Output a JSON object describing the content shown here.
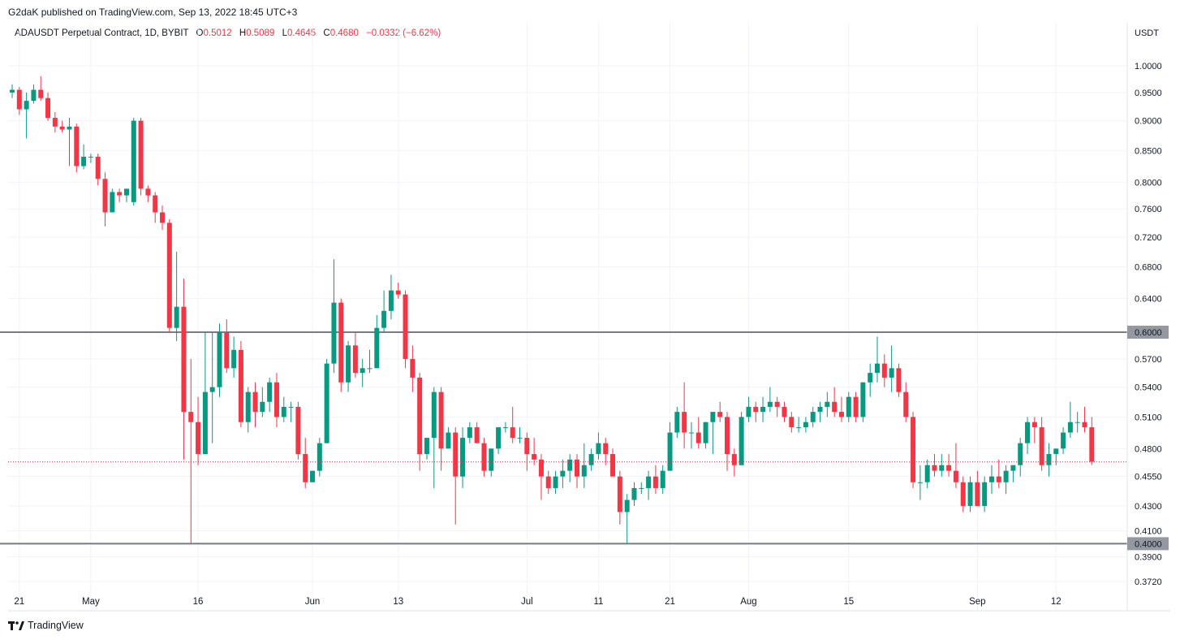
{
  "header": {
    "publisher": "G2daK published on TradingView.com, Sep 13, 2022 18:45 UTC+3"
  },
  "legend": {
    "symbol": "ADAUSDT Perpetual Contract, 1D, BYBIT",
    "open_label": "O",
    "open": "0.5012",
    "high_label": "H",
    "high": "0.5089",
    "low_label": "L",
    "low": "0.4645",
    "close_label": "C",
    "close": "0.4680",
    "change": "−0.0332 (−6.62%)"
  },
  "footer": {
    "brand": "TradingView"
  },
  "colors": {
    "up": "#089981",
    "down": "#f23645",
    "grid": "#f0f3fa",
    "level_line": "#787b86",
    "level_label_bg": "#9598a1",
    "last_price": "#f23645"
  },
  "chart_data": {
    "type": "candlestick",
    "currency": "USDT",
    "log_scale": true,
    "grid": true,
    "y_ticks": [
      "1.0000",
      "0.9500",
      "0.9000",
      "0.8500",
      "0.8000",
      "0.7600",
      "0.7200",
      "0.6800",
      "0.6400",
      "0.5700",
      "0.5400",
      "0.5100",
      "0.4800",
      "0.4550",
      "0.4300",
      "0.4100",
      "0.3900",
      "0.3720"
    ],
    "x_ticks": [
      {
        "label": "21",
        "i": 1
      },
      {
        "label": "May",
        "i": 11
      },
      {
        "label": "16",
        "i": 26
      },
      {
        "label": "Jun",
        "i": 42
      },
      {
        "label": "13",
        "i": 54
      },
      {
        "label": "Jul",
        "i": 72
      },
      {
        "label": "11",
        "i": 82
      },
      {
        "label": "21",
        "i": 92
      },
      {
        "label": "Aug",
        "i": 103
      },
      {
        "label": "15",
        "i": 117
      },
      {
        "label": "Sep",
        "i": 135
      },
      {
        "label": "12",
        "i": 146
      }
    ],
    "horizontal_levels": [
      {
        "value": "0.6000"
      },
      {
        "value": "0.4000"
      }
    ],
    "last_price": 0.468,
    "first_date": "2022-04-20",
    "candles": [
      [
        0.95,
        0.965,
        0.94,
        0.955
      ],
      [
        0.955,
        0.96,
        0.91,
        0.92
      ],
      [
        0.92,
        0.95,
        0.87,
        0.935
      ],
      [
        0.935,
        0.965,
        0.93,
        0.955
      ],
      [
        0.955,
        0.98,
        0.935,
        0.94
      ],
      [
        0.94,
        0.95,
        0.9,
        0.905
      ],
      [
        0.905,
        0.915,
        0.88,
        0.89
      ],
      [
        0.89,
        0.9,
        0.88,
        0.885
      ],
      [
        0.885,
        0.905,
        0.825,
        0.89
      ],
      [
        0.89,
        0.895,
        0.815,
        0.825
      ],
      [
        0.825,
        0.86,
        0.82,
        0.84
      ],
      [
        0.84,
        0.845,
        0.83,
        0.84
      ],
      [
        0.84,
        0.845,
        0.795,
        0.805
      ],
      [
        0.805,
        0.815,
        0.735,
        0.755
      ],
      [
        0.755,
        0.79,
        0.755,
        0.785
      ],
      [
        0.785,
        0.79,
        0.77,
        0.78
      ],
      [
        0.78,
        0.785,
        0.77,
        0.79
      ],
      [
        0.77,
        0.905,
        0.765,
        0.9
      ],
      [
        0.9,
        0.905,
        0.78,
        0.79
      ],
      [
        0.79,
        0.795,
        0.77,
        0.78
      ],
      [
        0.78,
        0.785,
        0.74,
        0.755
      ],
      [
        0.755,
        0.765,
        0.73,
        0.74
      ],
      [
        0.74,
        0.745,
        0.6,
        0.605
      ],
      [
        0.605,
        0.7,
        0.59,
        0.63
      ],
      [
        0.63,
        0.665,
        0.47,
        0.515
      ],
      [
        0.515,
        0.57,
        0.4,
        0.505
      ],
      [
        0.505,
        0.53,
        0.465,
        0.475
      ],
      [
        0.475,
        0.6,
        0.475,
        0.535
      ],
      [
        0.535,
        0.6,
        0.485,
        0.54
      ],
      [
        0.54,
        0.61,
        0.53,
        0.6
      ],
      [
        0.6,
        0.615,
        0.555,
        0.56
      ],
      [
        0.56,
        0.595,
        0.55,
        0.58
      ],
      [
        0.58,
        0.59,
        0.5,
        0.505
      ],
      [
        0.505,
        0.54,
        0.495,
        0.535
      ],
      [
        0.535,
        0.545,
        0.5,
        0.515
      ],
      [
        0.515,
        0.54,
        0.51,
        0.525
      ],
      [
        0.525,
        0.55,
        0.515,
        0.545
      ],
      [
        0.545,
        0.555,
        0.5,
        0.51
      ],
      [
        0.51,
        0.53,
        0.505,
        0.52
      ],
      [
        0.52,
        0.525,
        0.505,
        0.52
      ],
      [
        0.52,
        0.525,
        0.47,
        0.475
      ],
      [
        0.475,
        0.49,
        0.445,
        0.45
      ],
      [
        0.45,
        0.46,
        0.45,
        0.46
      ],
      [
        0.46,
        0.49,
        0.455,
        0.485
      ],
      [
        0.485,
        0.57,
        0.485,
        0.565
      ],
      [
        0.565,
        0.69,
        0.555,
        0.635
      ],
      [
        0.635,
        0.64,
        0.535,
        0.545
      ],
      [
        0.545,
        0.59,
        0.535,
        0.585
      ],
      [
        0.585,
        0.6,
        0.55,
        0.555
      ],
      [
        0.555,
        0.57,
        0.54,
        0.56
      ],
      [
        0.56,
        0.58,
        0.555,
        0.56
      ],
      [
        0.56,
        0.62,
        0.56,
        0.605
      ],
      [
        0.605,
        0.65,
        0.6,
        0.625
      ],
      [
        0.625,
        0.67,
        0.615,
        0.65
      ],
      [
        0.65,
        0.66,
        0.64,
        0.645
      ],
      [
        0.645,
        0.65,
        0.56,
        0.57
      ],
      [
        0.57,
        0.585,
        0.535,
        0.55
      ],
      [
        0.55,
        0.555,
        0.46,
        0.475
      ],
      [
        0.475,
        0.49,
        0.47,
        0.49
      ],
      [
        0.49,
        0.54,
        0.445,
        0.535
      ],
      [
        0.535,
        0.54,
        0.46,
        0.48
      ],
      [
        0.48,
        0.5,
        0.48,
        0.495
      ],
      [
        0.495,
        0.5,
        0.415,
        0.455
      ],
      [
        0.455,
        0.5,
        0.445,
        0.49
      ],
      [
        0.49,
        0.505,
        0.485,
        0.5
      ],
      [
        0.5,
        0.505,
        0.485,
        0.485
      ],
      [
        0.485,
        0.49,
        0.455,
        0.46
      ],
      [
        0.46,
        0.48,
        0.455,
        0.48
      ],
      [
        0.48,
        0.5,
        0.475,
        0.5
      ],
      [
        0.5,
        0.505,
        0.495,
        0.5
      ],
      [
        0.5,
        0.52,
        0.485,
        0.49
      ],
      [
        0.49,
        0.5,
        0.485,
        0.49
      ],
      [
        0.49,
        0.495,
        0.46,
        0.475
      ],
      [
        0.475,
        0.49,
        0.465,
        0.47
      ],
      [
        0.47,
        0.475,
        0.435,
        0.455
      ],
      [
        0.455,
        0.46,
        0.44,
        0.445
      ],
      [
        0.445,
        0.46,
        0.44,
        0.455
      ],
      [
        0.455,
        0.47,
        0.445,
        0.46
      ],
      [
        0.46,
        0.475,
        0.45,
        0.47
      ],
      [
        0.47,
        0.475,
        0.445,
        0.455
      ],
      [
        0.455,
        0.485,
        0.445,
        0.465
      ],
      [
        0.465,
        0.48,
        0.46,
        0.475
      ],
      [
        0.475,
        0.495,
        0.47,
        0.485
      ],
      [
        0.485,
        0.49,
        0.465,
        0.475
      ],
      [
        0.475,
        0.48,
        0.455,
        0.455
      ],
      [
        0.455,
        0.46,
        0.415,
        0.425
      ],
      [
        0.425,
        0.44,
        0.4,
        0.435
      ],
      [
        0.435,
        0.45,
        0.43,
        0.445
      ],
      [
        0.445,
        0.45,
        0.44,
        0.445
      ],
      [
        0.445,
        0.46,
        0.435,
        0.455
      ],
      [
        0.455,
        0.465,
        0.44,
        0.445
      ],
      [
        0.445,
        0.465,
        0.44,
        0.46
      ],
      [
        0.46,
        0.505,
        0.46,
        0.495
      ],
      [
        0.495,
        0.52,
        0.49,
        0.515
      ],
      [
        0.515,
        0.545,
        0.48,
        0.495
      ],
      [
        0.495,
        0.505,
        0.48,
        0.495
      ],
      [
        0.495,
        0.51,
        0.48,
        0.485
      ],
      [
        0.485,
        0.505,
        0.48,
        0.505
      ],
      [
        0.505,
        0.515,
        0.475,
        0.515
      ],
      [
        0.515,
        0.525,
        0.505,
        0.51
      ],
      [
        0.51,
        0.515,
        0.46,
        0.475
      ],
      [
        0.475,
        0.48,
        0.455,
        0.465
      ],
      [
        0.465,
        0.515,
        0.465,
        0.51
      ],
      [
        0.51,
        0.53,
        0.505,
        0.52
      ],
      [
        0.52,
        0.525,
        0.505,
        0.515
      ],
      [
        0.515,
        0.53,
        0.505,
        0.52
      ],
      [
        0.52,
        0.54,
        0.515,
        0.525
      ],
      [
        0.525,
        0.53,
        0.51,
        0.52
      ],
      [
        0.52,
        0.525,
        0.505,
        0.51
      ],
      [
        0.51,
        0.515,
        0.495,
        0.5
      ],
      [
        0.5,
        0.51,
        0.495,
        0.5
      ],
      [
        0.5,
        0.51,
        0.495,
        0.505
      ],
      [
        0.505,
        0.52,
        0.5,
        0.515
      ],
      [
        0.515,
        0.525,
        0.505,
        0.52
      ],
      [
        0.52,
        0.535,
        0.51,
        0.525
      ],
      [
        0.525,
        0.54,
        0.51,
        0.515
      ],
      [
        0.515,
        0.53,
        0.505,
        0.51
      ],
      [
        0.51,
        0.535,
        0.505,
        0.53
      ],
      [
        0.53,
        0.535,
        0.505,
        0.51
      ],
      [
        0.51,
        0.545,
        0.505,
        0.545
      ],
      [
        0.545,
        0.565,
        0.53,
        0.555
      ],
      [
        0.555,
        0.595,
        0.545,
        0.565
      ],
      [
        0.565,
        0.575,
        0.54,
        0.55
      ],
      [
        0.55,
        0.585,
        0.535,
        0.56
      ],
      [
        0.56,
        0.565,
        0.53,
        0.535
      ],
      [
        0.535,
        0.545,
        0.505,
        0.51
      ],
      [
        0.51,
        0.515,
        0.445,
        0.45
      ],
      [
        0.45,
        0.465,
        0.435,
        0.45
      ],
      [
        0.45,
        0.47,
        0.445,
        0.465
      ],
      [
        0.465,
        0.475,
        0.455,
        0.46
      ],
      [
        0.46,
        0.475,
        0.455,
        0.465
      ],
      [
        0.465,
        0.475,
        0.455,
        0.46
      ],
      [
        0.46,
        0.485,
        0.445,
        0.45
      ],
      [
        0.45,
        0.455,
        0.425,
        0.43
      ],
      [
        0.43,
        0.455,
        0.425,
        0.45
      ],
      [
        0.45,
        0.46,
        0.43,
        0.43
      ],
      [
        0.43,
        0.455,
        0.425,
        0.45
      ],
      [
        0.45,
        0.465,
        0.44,
        0.455
      ],
      [
        0.455,
        0.47,
        0.445,
        0.45
      ],
      [
        0.45,
        0.465,
        0.44,
        0.46
      ],
      [
        0.46,
        0.465,
        0.45,
        0.465
      ],
      [
        0.465,
        0.49,
        0.455,
        0.485
      ],
      [
        0.485,
        0.51,
        0.475,
        0.505
      ],
      [
        0.505,
        0.51,
        0.485,
        0.5
      ],
      [
        0.5,
        0.51,
        0.46,
        0.465
      ],
      [
        0.465,
        0.485,
        0.455,
        0.475
      ],
      [
        0.475,
        0.48,
        0.465,
        0.48
      ],
      [
        0.48,
        0.5,
        0.475,
        0.495
      ],
      [
        0.495,
        0.525,
        0.49,
        0.505
      ],
      [
        0.505,
        0.515,
        0.495,
        0.505
      ],
      [
        0.505,
        0.52,
        0.495,
        0.5
      ],
      [
        0.5,
        0.51,
        0.465,
        0.468
      ]
    ]
  }
}
